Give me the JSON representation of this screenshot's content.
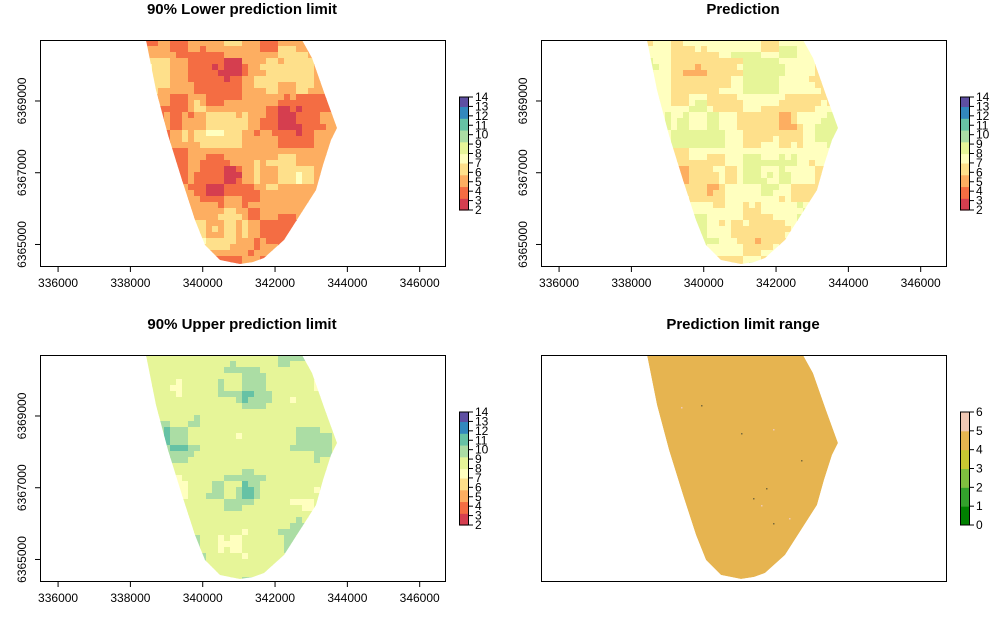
{
  "chart_data": [
    {
      "type": "heatmap",
      "title": "90% Lower prediction limit",
      "x_ticks": [
        "336000",
        "338000",
        "340000",
        "342000",
        "344000",
        "346000"
      ],
      "y_ticks": [
        "6365000",
        "6367000",
        "6369000"
      ],
      "xlim": [
        335500,
        346700
      ],
      "ylim": [
        6364400,
        6370700
      ],
      "legend": {
        "position": "right",
        "ticks": [
          "2",
          "3",
          "4",
          "5",
          "6",
          "7",
          "8",
          "9",
          "10",
          "11",
          "12",
          "13",
          "14"
        ],
        "range": [
          2,
          14
        ]
      },
      "dominant_values": [
        3,
        4,
        5,
        6,
        7
      ]
    },
    {
      "type": "heatmap",
      "title": "Prediction",
      "x_ticks": [
        "336000",
        "338000",
        "340000",
        "342000",
        "344000",
        "346000"
      ],
      "y_ticks": [
        "6365000",
        "6367000",
        "6369000"
      ],
      "xlim": [
        335500,
        346700
      ],
      "ylim": [
        6364400,
        6370700
      ],
      "legend": {
        "position": "right",
        "ticks": [
          "2",
          "3",
          "4",
          "5",
          "6",
          "7",
          "8",
          "9",
          "10",
          "11",
          "12",
          "13",
          "14"
        ],
        "range": [
          2,
          14
        ]
      },
      "dominant_values": [
        5,
        6,
        7,
        8,
        9
      ]
    },
    {
      "type": "heatmap",
      "title": "90% Upper prediction limit",
      "x_ticks": [
        "336000",
        "338000",
        "340000",
        "342000",
        "344000",
        "346000"
      ],
      "y_ticks": [
        "6365000",
        "6367000",
        "6369000"
      ],
      "xlim": [
        335500,
        346700
      ],
      "ylim": [
        6364400,
        6370700
      ],
      "legend": {
        "position": "right",
        "ticks": [
          "2",
          "3",
          "4",
          "5",
          "6",
          "7",
          "8",
          "9",
          "10",
          "11",
          "12",
          "13",
          "14"
        ],
        "range": [
          2,
          14
        ]
      },
      "dominant_values": [
        7,
        8,
        9,
        10,
        11
      ]
    },
    {
      "type": "heatmap",
      "title": "Prediction limit range",
      "x_ticks": [],
      "y_ticks": [],
      "legend": {
        "position": "right",
        "ticks": [
          "0",
          "1",
          "2",
          "3",
          "4",
          "5",
          "6"
        ],
        "range": [
          0,
          6
        ]
      },
      "dominant_values": [
        4
      ]
    }
  ],
  "colors": {
    "spectral": [
      "#d53e4f",
      "#f46d43",
      "#fdae61",
      "#fee08b",
      "#ffffbf",
      "#e6f598",
      "#abdda4",
      "#66c2a5",
      "#3288bd",
      "#5e4fa2",
      "#3f007d"
    ],
    "range_scale": [
      "#008000",
      "#33a02c",
      "#7fbf3f",
      "#c8c832",
      "#e6b450",
      "#f0c8b4",
      "#ffffff"
    ],
    "range_fill": "#e6b450"
  }
}
